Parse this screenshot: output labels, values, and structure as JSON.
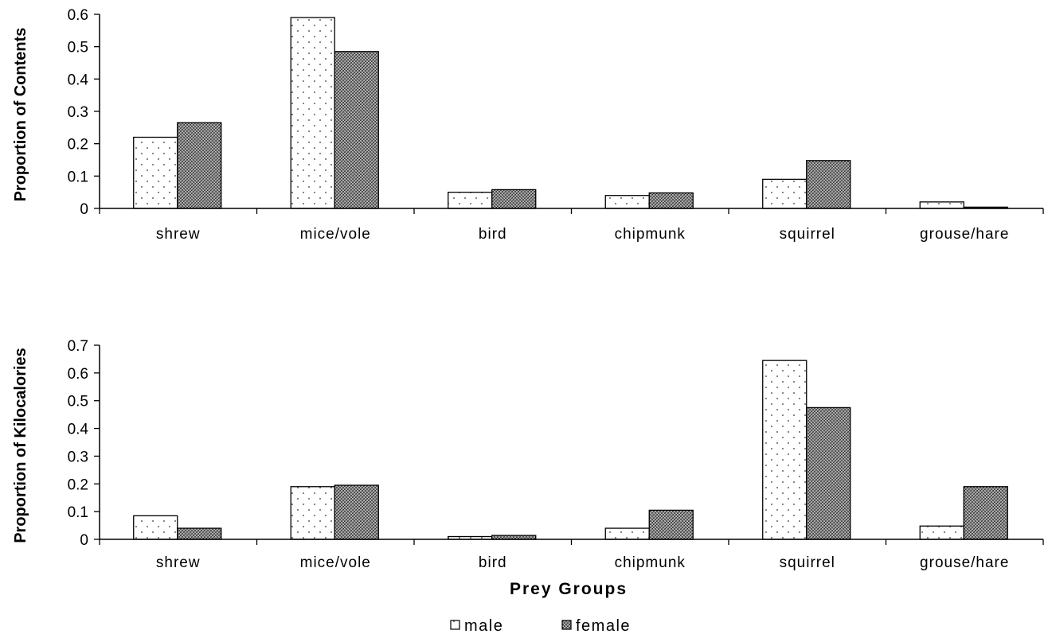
{
  "chart_data": [
    {
      "type": "bar",
      "categories": [
        "shrew",
        "mice/vole",
        "bird",
        "chipmunk",
        "squirrel",
        "grouse/hare"
      ],
      "series": [
        {
          "name": "male",
          "values": [
            0.22,
            0.59,
            0.05,
            0.04,
            0.09,
            0.02
          ]
        },
        {
          "name": "female",
          "values": [
            0.265,
            0.485,
            0.058,
            0.048,
            0.148,
            0.004
          ]
        }
      ],
      "ylabel": "Proportion of Contents",
      "xlabel": "",
      "ylim": [
        0,
        0.6
      ],
      "yticks": [
        "0",
        "0.1",
        "0.2",
        "0.3",
        "0.4",
        "0.5",
        "0.6"
      ],
      "grid": false
    },
    {
      "type": "bar",
      "categories": [
        "shrew",
        "mice/vole",
        "bird",
        "chipmunk",
        "squirrel",
        "grouse/hare"
      ],
      "series": [
        {
          "name": "male",
          "values": [
            0.085,
            0.19,
            0.01,
            0.04,
            0.645,
            0.048
          ]
        },
        {
          "name": "female",
          "values": [
            0.04,
            0.195,
            0.014,
            0.105,
            0.475,
            0.19
          ]
        }
      ],
      "ylabel": "Proportion of Kilocalories",
      "xlabel": "Prey Groups",
      "ylim": [
        0,
        0.7
      ],
      "yticks": [
        "0",
        "0.1",
        "0.2",
        "0.3",
        "0.4",
        "0.5",
        "0.6",
        "0.7"
      ],
      "grid": false
    }
  ],
  "legend": {
    "placement": "bottom-center",
    "items": [
      {
        "label": "male",
        "pattern": "dotted"
      },
      {
        "label": "female",
        "pattern": "crosshatch"
      }
    ]
  }
}
